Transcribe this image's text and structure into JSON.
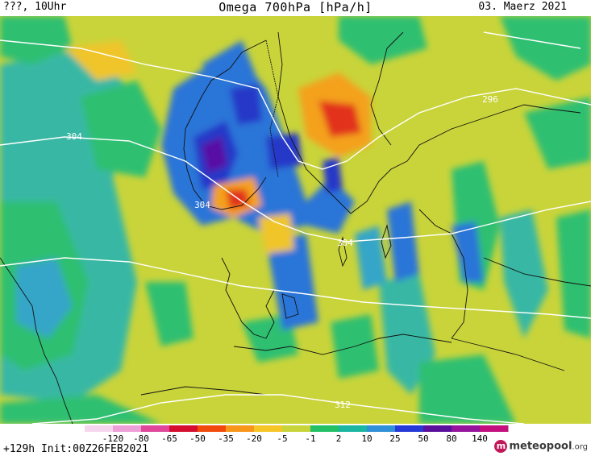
{
  "header": {
    "left": "???, 10Uhr",
    "title": "Omega 700hPa [hPa/h]",
    "date": "03. Maerz 2021"
  },
  "footer": {
    "run_info": "+129h Init:00Z26FEB2021",
    "brand_name": "meteopool",
    "brand_tld": ".org"
  },
  "legend": {
    "ticks": [
      "-120",
      "-80",
      "-65",
      "-50",
      "-35",
      "-20",
      "-5",
      "-1",
      "2",
      "10",
      "25",
      "50",
      "80",
      "140"
    ],
    "colors": [
      "#f6d6ef",
      "#ef9fd8",
      "#e0479a",
      "#d50d2e",
      "#f14a0c",
      "#f79618",
      "#f6c627",
      "#c7d43a",
      "#23c065",
      "#1bb6a3",
      "#2f8fd8",
      "#2439d8",
      "#5a109b",
      "#96139c",
      "#c3107e"
    ]
  },
  "map": {
    "isobars": [
      "296",
      "304",
      "304",
      "304",
      "312"
    ],
    "colors": {
      "background": "#c9d43a",
      "green": "#2fbf71",
      "teal": "#37b8a4",
      "blue": "#2a74d8",
      "deep_blue": "#2637c8",
      "purple": "#5810a4",
      "orange": "#f4a11e",
      "red": "#e2321a",
      "yellow": "#efc52b"
    }
  }
}
